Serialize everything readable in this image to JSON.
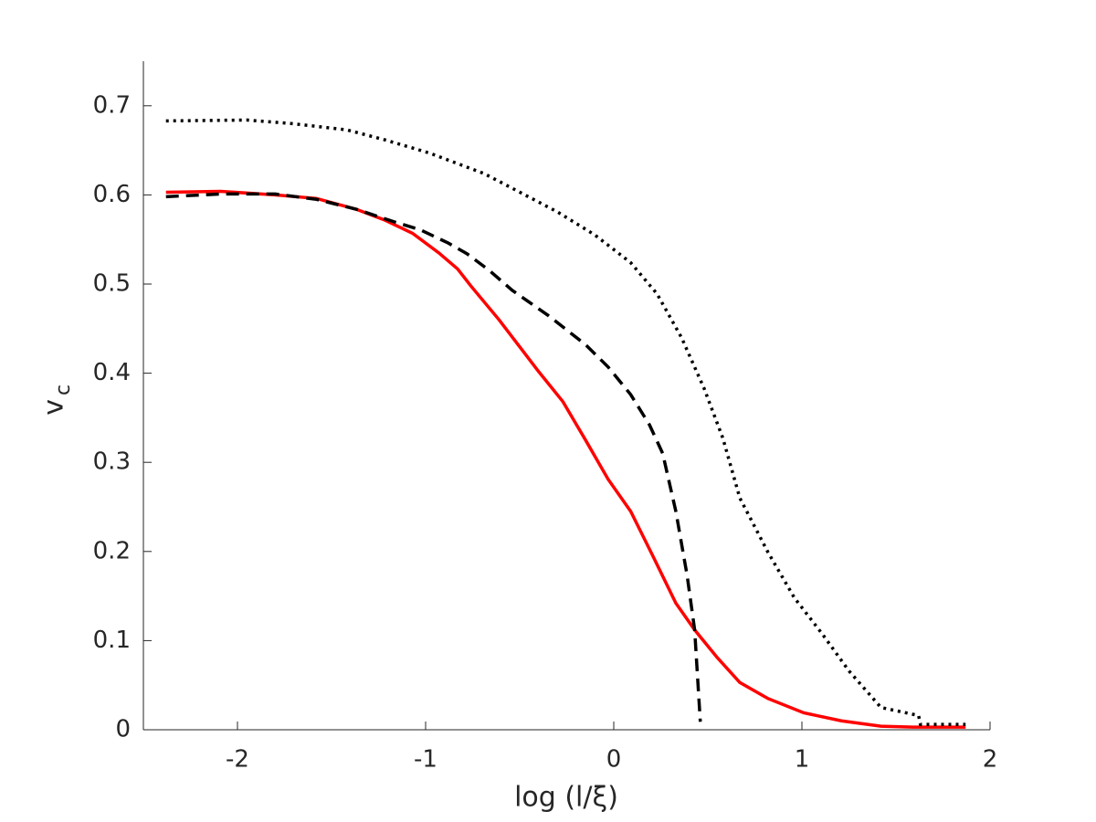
{
  "chart_data": {
    "type": "line",
    "xlabel": "log (l/ξ)",
    "ylabel": "v",
    "ylabel_subscript": "c",
    "xlim": [
      -2.5,
      2
    ],
    "ylim": [
      0,
      0.75
    ],
    "xticks": [
      -2,
      -1,
      0,
      1,
      2
    ],
    "yticks": [
      0,
      0.1,
      0.2,
      0.3,
      0.4,
      0.5,
      0.6,
      0.7
    ],
    "grid": false,
    "series": [
      {
        "color": "#ff0000",
        "dash": "solid",
        "x": [
          -2.38,
          -2.09,
          -1.8,
          -1.58,
          -1.37,
          -1.22,
          -1.07,
          -0.93,
          -0.83,
          -0.76,
          -0.61,
          -0.4,
          -0.27,
          -0.15,
          -0.03,
          0.09,
          0.21,
          0.33,
          0.43,
          0.55,
          0.67,
          0.82,
          1.01,
          1.21,
          1.42,
          1.59,
          1.87
        ],
        "values": [
          0.603,
          0.604,
          0.6,
          0.596,
          0.584,
          0.572,
          0.557,
          0.535,
          0.517,
          0.498,
          0.46,
          0.402,
          0.368,
          0.325,
          0.281,
          0.245,
          0.194,
          0.142,
          0.112,
          0.081,
          0.053,
          0.035,
          0.019,
          0.01,
          0.004,
          0.003,
          0.003
        ]
      },
      {
        "color": "#000000",
        "dash": "dashed",
        "x": [
          -2.38,
          -2.09,
          -1.8,
          -1.58,
          -1.37,
          -1.17,
          -1.03,
          -0.88,
          -0.78,
          -0.66,
          -0.54,
          -0.35,
          -0.15,
          -0.03,
          0.09,
          0.19,
          0.26,
          0.33,
          0.39,
          0.43,
          0.46
        ],
        "values": [
          0.598,
          0.601,
          0.601,
          0.595,
          0.584,
          0.57,
          0.561,
          0.546,
          0.534,
          0.515,
          0.493,
          0.465,
          0.432,
          0.407,
          0.376,
          0.342,
          0.31,
          0.245,
          0.173,
          0.112,
          0.009
        ]
      },
      {
        "color": "#000000",
        "dash": "dotted",
        "x": [
          -2.38,
          -1.95,
          -1.71,
          -1.42,
          -1.22,
          -0.98,
          -0.69,
          -0.49,
          -0.3,
          -0.1,
          0.09,
          0.23,
          0.36,
          0.48,
          0.58,
          0.67,
          0.82,
          0.96,
          1.11,
          1.25,
          1.42,
          1.62,
          1.63,
          1.87
        ],
        "values": [
          0.683,
          0.684,
          0.68,
          0.673,
          0.662,
          0.647,
          0.624,
          0.602,
          0.581,
          0.555,
          0.524,
          0.489,
          0.44,
          0.383,
          0.327,
          0.26,
          0.199,
          0.148,
          0.107,
          0.066,
          0.025,
          0.016,
          0.006,
          0.006
        ]
      }
    ]
  }
}
